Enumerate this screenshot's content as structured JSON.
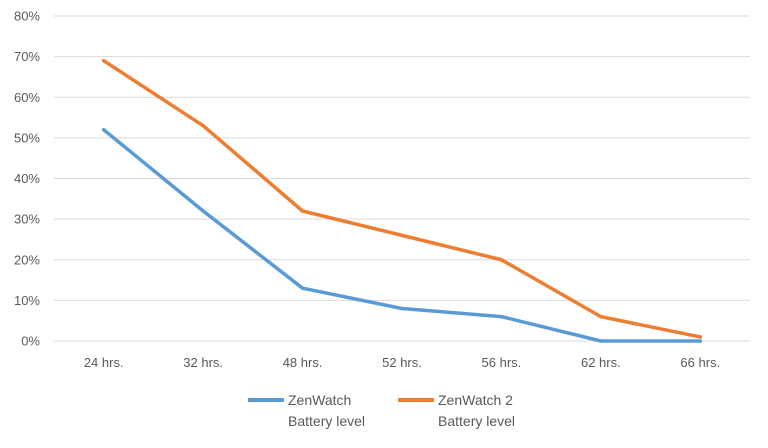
{
  "chart_data": {
    "type": "line",
    "title": "",
    "xlabel": "",
    "ylabel": "",
    "categories": [
      "24 hrs.",
      "32 hrs.",
      "48 hrs.",
      "52 hrs.",
      "56 hrs.",
      "62 hrs.",
      "66 hrs."
    ],
    "ylim": [
      0,
      80
    ],
    "yticks": [
      0,
      10,
      20,
      30,
      40,
      50,
      60,
      70,
      80
    ],
    "ytick_labels": [
      "0%",
      "10%",
      "20%",
      "30%",
      "40%",
      "50%",
      "60%",
      "70%",
      "80%"
    ],
    "grid": true,
    "legend_position": "bottom",
    "series": [
      {
        "name": "ZenWatch Battery level",
        "legend_lines": [
          "ZenWatch",
          "Battery level"
        ],
        "color": "#5B9BD5",
        "values": [
          52,
          32,
          13,
          8,
          6,
          0,
          0
        ]
      },
      {
        "name": "ZenWatch 2 Battery level",
        "legend_lines": [
          "ZenWatch 2",
          "Battery level"
        ],
        "color": "#ED7D31",
        "values": [
          69,
          53,
          32,
          26,
          20,
          6,
          1
        ]
      }
    ]
  }
}
